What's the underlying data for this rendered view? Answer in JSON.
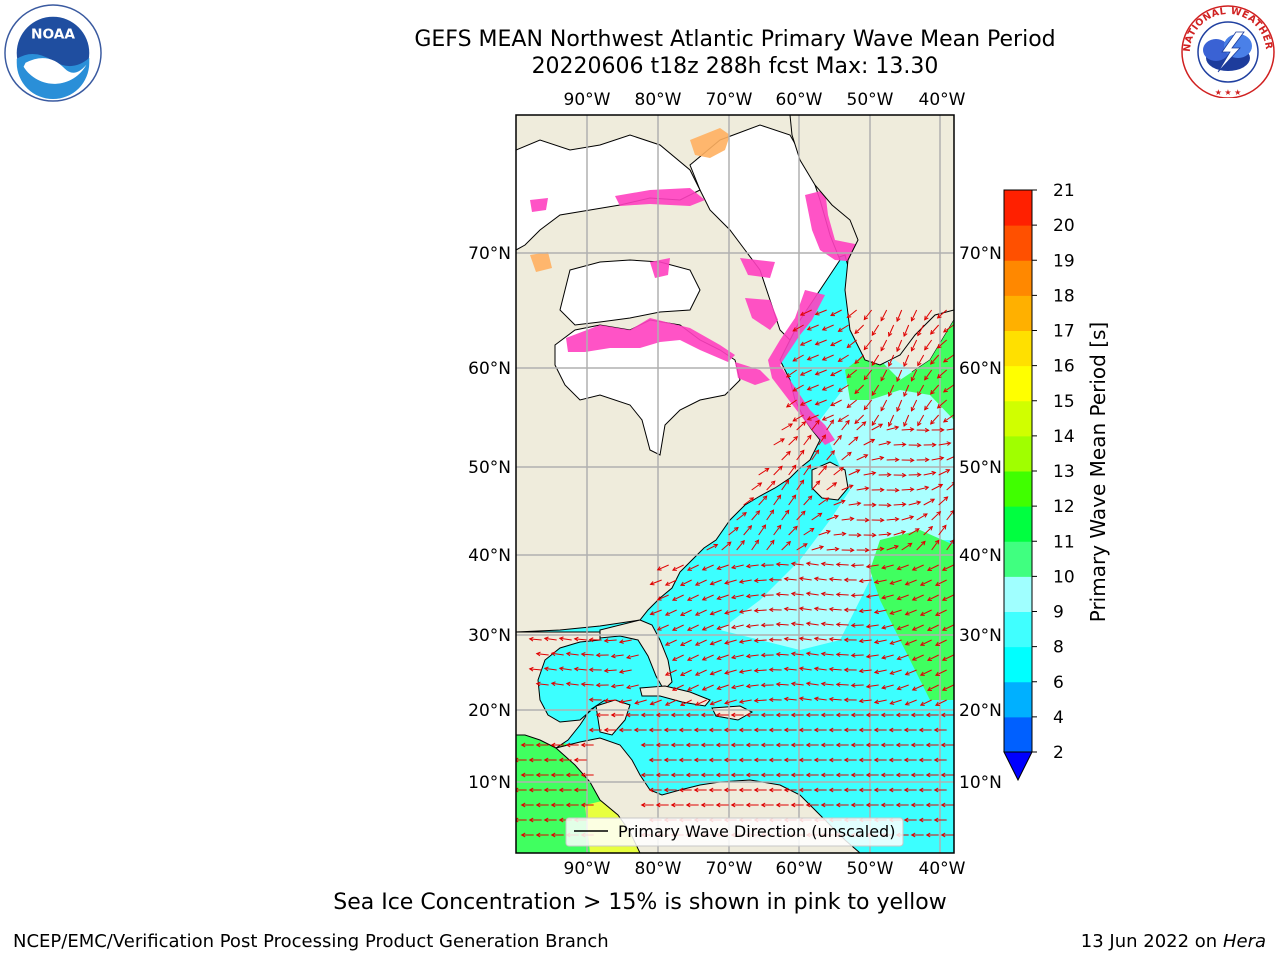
{
  "title": {
    "line1": "GEFS MEAN Northwest Atlantic Primary Wave Mean Period",
    "line2": "20220606 t18z 288h fcst   Max: 13.30"
  },
  "map": {
    "lon_labels": [
      "90°W",
      "80°W",
      "70°W",
      "60°W",
      "50°W",
      "40°W"
    ],
    "lat_labels": [
      "70°N",
      "60°N",
      "50°N",
      "40°N",
      "30°N",
      "20°N",
      "10°N"
    ],
    "lon_range": [
      -100,
      -38
    ],
    "lat_range": [
      2,
      80
    ],
    "grid": true,
    "legend_label": "Primary Wave Direction (unscaled)",
    "colors": {
      "land": "#efecdc",
      "ocean_low": "#3cffff",
      "ocean_mid": "#aaffff",
      "green": "#40ff60",
      "yellow": "#e8ff40",
      "arrow": "#e00000",
      "ice_pink": "#ff40c0",
      "ice_orange": "#ffb060"
    }
  },
  "colorbar": {
    "label": "Primary Wave Mean Period [s]",
    "ticks": [
      "2",
      "4",
      "6",
      "8",
      "9",
      "10",
      "11",
      "12",
      "13",
      "14",
      "15",
      "16",
      "17",
      "18",
      "19",
      "20",
      "21"
    ],
    "colors": [
      "#0060ff",
      "#00b0ff",
      "#00ffff",
      "#40ffff",
      "#a0ffff",
      "#40ff80",
      "#00ff40",
      "#40ff00",
      "#a0ff00",
      "#d0ff00",
      "#ffff00",
      "#ffe000",
      "#ffb000",
      "#ff8800",
      "#ff5000",
      "#ff2000",
      "#ff0000"
    ],
    "extend_color": "#0000ff"
  },
  "logos": {
    "noaa_text": "NOAA",
    "nws_text": "NATIONAL WEATHER SERVICE"
  },
  "caption": "Sea Ice Concentration > 15% is shown in pink to yellow",
  "footer": {
    "left": "NCEP/EMC/Verification Post Processing Product Generation Branch",
    "right_date": "13 Jun 2022 on",
    "right_machine": "Hera"
  }
}
